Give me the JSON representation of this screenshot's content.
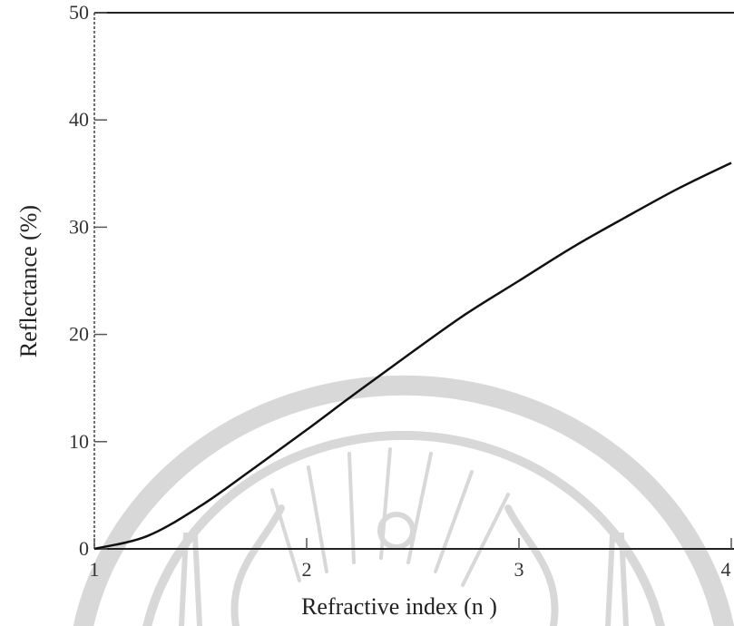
{
  "chart_data": {
    "type": "line",
    "title": "",
    "xlabel": "Refractive index (n )",
    "ylabel": "Reflectance (%)",
    "xlim": [
      1,
      4
    ],
    "ylim": [
      0,
      50
    ],
    "x_ticks": [
      1,
      2,
      3,
      4
    ],
    "y_ticks": [
      0,
      10,
      20,
      30,
      40,
      50
    ],
    "x_tick_labels": [
      "1",
      "2",
      "3",
      "4"
    ],
    "y_tick_labels": [
      "0",
      "10",
      "20",
      "30",
      "40",
      "50"
    ],
    "grid": false,
    "legend": "none",
    "series": [
      {
        "color": "#111111",
        "x": [
          1.0,
          1.25,
          1.5,
          1.75,
          2.0,
          2.25,
          2.5,
          2.75,
          3.0,
          3.25,
          3.5,
          3.75,
          4.0
        ],
        "y": [
          0.0,
          1.2,
          4.0,
          7.5,
          11.1,
          14.8,
          18.4,
          21.9,
          25.0,
          28.1,
          30.9,
          33.6,
          36.0
        ]
      }
    ]
  }
}
